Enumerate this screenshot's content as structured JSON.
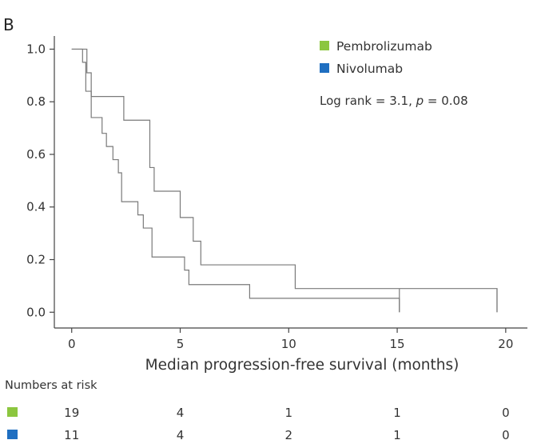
{
  "panel_label": "B",
  "chart_data": {
    "type": "line",
    "title": "",
    "xlabel": "Median progression-free survival (months)",
    "ylabel": "",
    "xlim": [
      -0.8,
      21
    ],
    "ylim": [
      -0.06,
      1.05
    ],
    "xticks": [
      0,
      5,
      10,
      15,
      20
    ],
    "yticks": [
      "0.0",
      "0.2",
      "0.4",
      "0.6",
      "0.8",
      "1.0"
    ],
    "legend_position": "top-right",
    "annotation": {
      "prefix": "Log rank = 3.1, ",
      "p_symbol": "p",
      "suffix": " = 0.08"
    },
    "series": [
      {
        "name": "Pembrolizumab",
        "color": "#8cc63f",
        "steps": [
          [
            0.0,
            1.0
          ],
          [
            0.5,
            0.95
          ],
          [
            0.65,
            0.84
          ],
          [
            0.9,
            0.74
          ],
          [
            1.4,
            0.68
          ],
          [
            1.6,
            0.63
          ],
          [
            1.9,
            0.58
          ],
          [
            2.15,
            0.53
          ],
          [
            2.3,
            0.42
          ],
          [
            3.05,
            0.37
          ],
          [
            3.3,
            0.32
          ],
          [
            3.7,
            0.21
          ],
          [
            5.2,
            0.16
          ],
          [
            5.4,
            0.105
          ],
          [
            8.2,
            0.053
          ],
          [
            15.1,
            0.0
          ]
        ],
        "end_x": 15.1,
        "risk": [
          "19",
          "4",
          "1",
          "1",
          "0"
        ]
      },
      {
        "name": "Nivolumab",
        "color": "#1f6fc1",
        "steps": [
          [
            0.0,
            1.0
          ],
          [
            0.7,
            0.91
          ],
          [
            0.9,
            0.82
          ],
          [
            2.4,
            0.73
          ],
          [
            3.6,
            0.55
          ],
          [
            3.8,
            0.46
          ],
          [
            5.0,
            0.36
          ],
          [
            5.6,
            0.27
          ],
          [
            5.95,
            0.18
          ],
          [
            10.3,
            0.09
          ],
          [
            19.6,
            0.0
          ]
        ],
        "end_x": 19.6,
        "risk": [
          "11",
          "4",
          "2",
          "1",
          "0"
        ]
      }
    ]
  },
  "risk_table": {
    "title": "Numbers at risk"
  }
}
